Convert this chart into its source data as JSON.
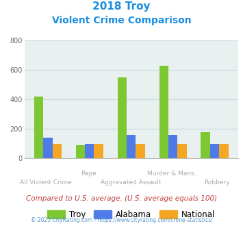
{
  "title_line1": "2018 Troy",
  "title_line2": "Violent Crime Comparison",
  "categories": [
    "All Violent Crime",
    "Rape",
    "Aggravated Assault",
    "Murder & Mans...",
    "Robbery"
  ],
  "troy": [
    420,
    90,
    550,
    630,
    175
  ],
  "alabama": [
    140,
    100,
    160,
    160,
    100
  ],
  "national": [
    100,
    100,
    100,
    100,
    100
  ],
  "color_troy": "#7dc832",
  "color_alabama": "#4f7be8",
  "color_national": "#f5a623",
  "bg_color": "#e8f0f0",
  "ylim": [
    0,
    800
  ],
  "yticks": [
    0,
    200,
    400,
    600,
    800
  ],
  "bar_width": 0.22,
  "footer_text": "Compared to U.S. average. (U.S. average equals 100)",
  "copyright_text": "© 2025 CityRating.com - https://www.cityrating.com/crime-statistics/",
  "title_color": "#1a8fe0",
  "cat_color": "#aaaaaa",
  "footer_color": "#c04040",
  "copyright_color": "#5599cc",
  "grid_color": "#c8d8d8"
}
